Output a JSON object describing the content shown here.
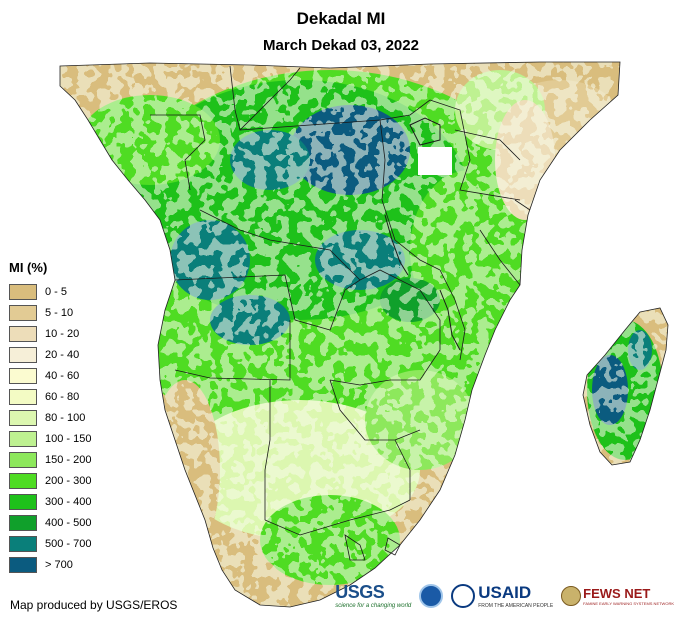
{
  "header": {
    "title": "Dekadal MI",
    "subtitle": "March Dekad 03, 2022"
  },
  "legend": {
    "title": "MI (%)",
    "items": [
      {
        "label": "0 - 5",
        "color": "#d9bd7d"
      },
      {
        "label": "5 - 10",
        "color": "#e2cb94"
      },
      {
        "label": "10 - 20",
        "color": "#edddb9"
      },
      {
        "label": "20 - 40",
        "color": "#f6efd8"
      },
      {
        "label": "40 - 60",
        "color": "#fbfbd0"
      },
      {
        "label": "60 - 80",
        "color": "#f3fbc4"
      },
      {
        "label": "80 - 100",
        "color": "#dcf7b0"
      },
      {
        "label": "100 - 150",
        "color": "#bef191"
      },
      {
        "label": "150 - 200",
        "color": "#8de85c"
      },
      {
        "label": "200 - 300",
        "color": "#4fdc23"
      },
      {
        "label": "300 - 400",
        "color": "#1ec11a"
      },
      {
        "label": "400 - 500",
        "color": "#10a02b"
      },
      {
        "label": "500 - 700",
        "color": "#0a7f7a"
      },
      {
        "label": "> 700",
        "color": "#0b5b7f"
      }
    ]
  },
  "footer": {
    "credit": "Map produced by USGS/EROS"
  },
  "logos": {
    "usgs": "USGS",
    "usgs_tag": "science for a changing world",
    "usaid": "USAID",
    "usaid_tag": "FROM THE AMERICAN PEOPLE",
    "fews": "FEWS NET",
    "fews_tag": "FAMINE EARLY WARNING SYSTEMS NETWORK"
  }
}
